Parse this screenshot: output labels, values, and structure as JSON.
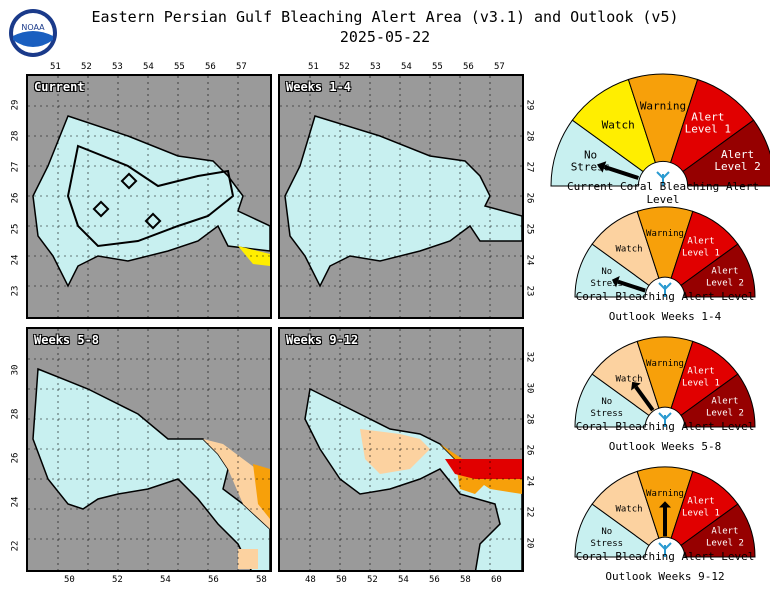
{
  "header": {
    "title": "Eastern Persian Gulf Bleaching Alert Area (v3.1) and Outlook (v5)",
    "date": "2025-05-22",
    "logo_text": "NOAA"
  },
  "panels": [
    {
      "label": "Current",
      "top_ticks": [
        "51",
        "52",
        "53",
        "54",
        "55",
        "56",
        "57"
      ],
      "left_ticks": [
        "29",
        "28",
        "27",
        "26",
        "25",
        "24",
        "23"
      ]
    },
    {
      "label": "Weeks 1-4",
      "top_ticks": [
        "51",
        "52",
        "53",
        "54",
        "55",
        "56",
        "57"
      ],
      "right_ticks": [
        "29",
        "28",
        "27",
        "26",
        "25",
        "24",
        "23"
      ]
    },
    {
      "label": "Weeks 5-8",
      "bottom_ticks": [
        "50",
        "52",
        "54",
        "56",
        "58"
      ],
      "left_ticks": [
        "30",
        "28",
        "26",
        "24",
        "22"
      ]
    },
    {
      "label": "Weeks 9-12",
      "bottom_ticks": [
        "48",
        "50",
        "52",
        "54",
        "56",
        "58",
        "60"
      ],
      "right_ticks": [
        "32",
        "30",
        "28",
        "26",
        "24",
        "22",
        "20"
      ]
    }
  ],
  "gauges": [
    {
      "caption1": "Current Coral Bleaching Alert Level",
      "caption2": "",
      "needle": "No Stress"
    },
    {
      "caption1": "Coral Bleaching Alert Level",
      "caption2": "Outlook Weeks 1-4",
      "needle": "No Stress"
    },
    {
      "caption1": "Coral Bleaching Alert Level",
      "caption2": "Outlook Weeks 5-8",
      "needle": "Watch"
    },
    {
      "caption1": "Coral Bleaching Alert Level",
      "caption2": "Outlook Weeks 9-12",
      "needle": "Warning"
    }
  ],
  "gauge_labels": {
    "no_stress_1": "No",
    "no_stress_2": "Stress",
    "watch": "Watch",
    "warning": "Warning",
    "alert1_1": "Alert",
    "alert1_2": "Level 1",
    "alert2_1": "Alert",
    "alert2_2": "Level 2"
  },
  "colors": {
    "no_stress": "#c8f0f0",
    "watch_current": "#ffee00",
    "watch_outlook": "#fcd2a0",
    "warning": "#f7a00a",
    "alert1": "#e10000",
    "alert2": "#960000",
    "land": "#9a9a9a"
  }
}
